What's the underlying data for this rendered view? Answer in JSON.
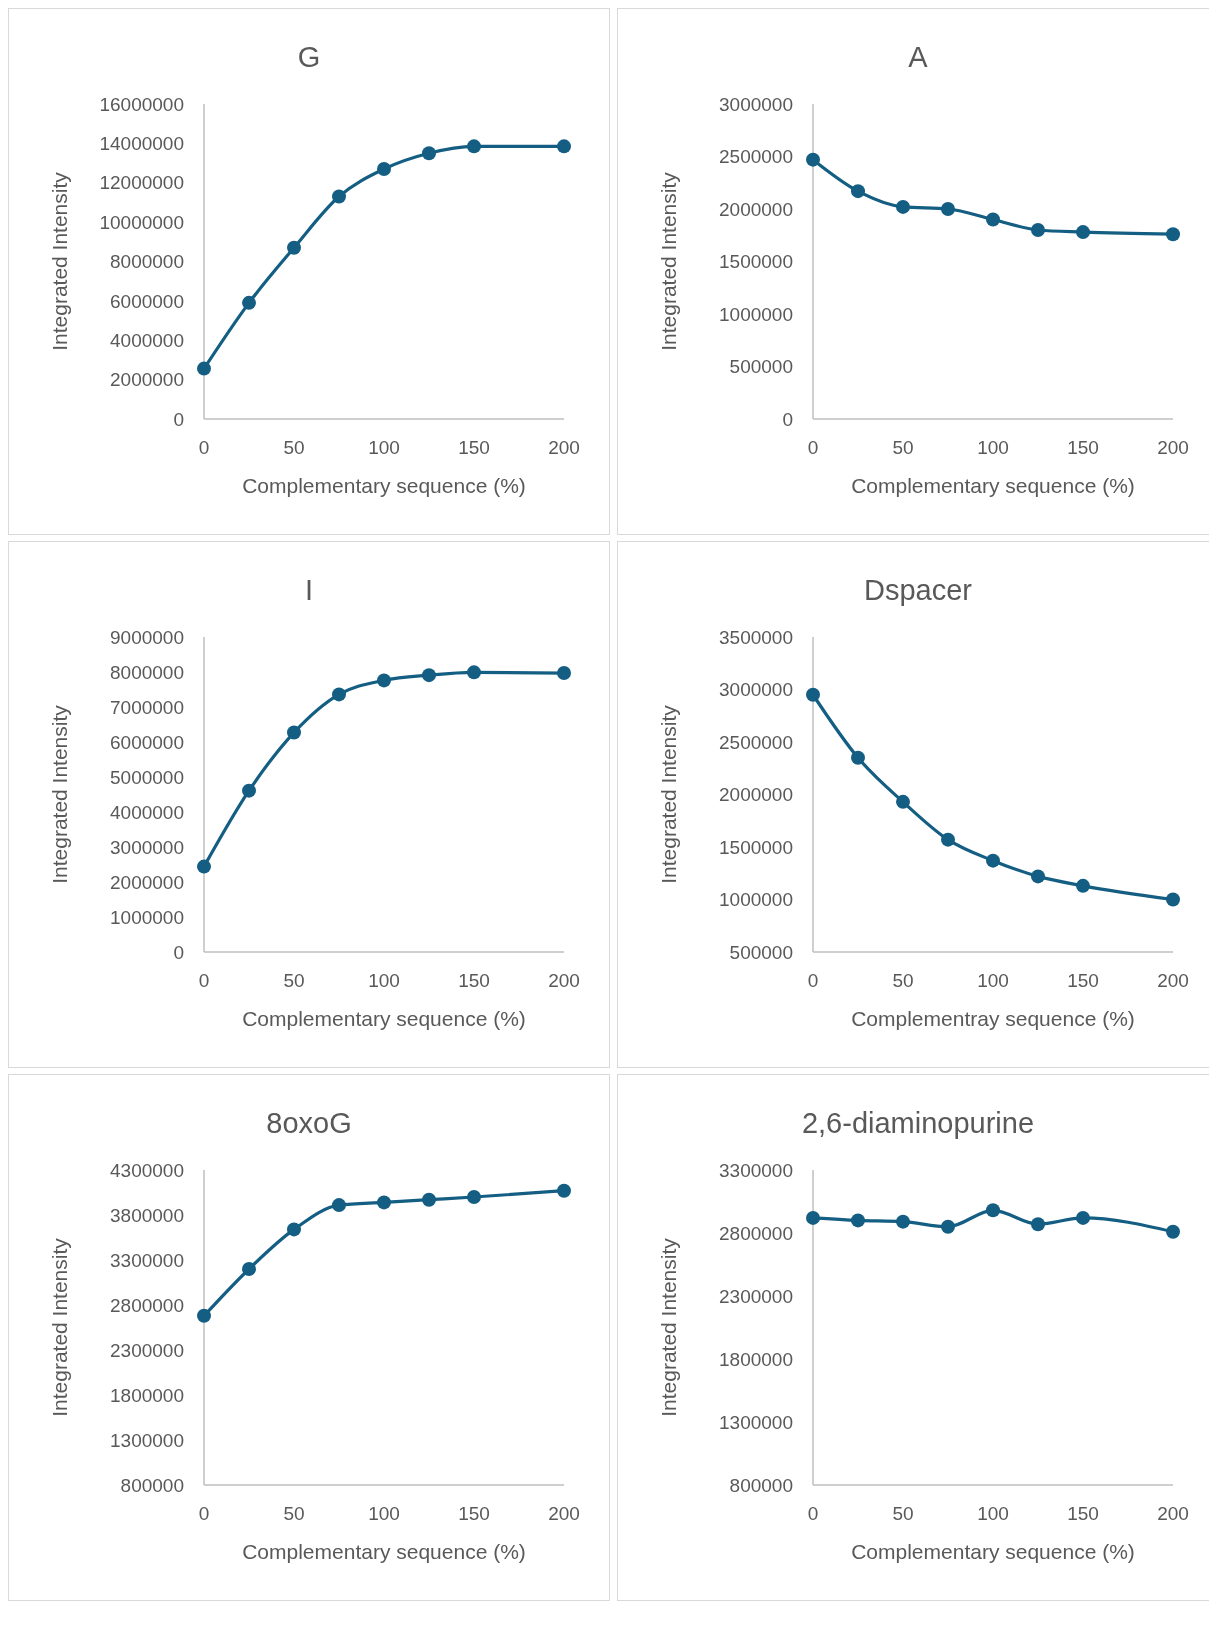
{
  "chart_data": [
    {
      "type": "line",
      "title": "G",
      "xlabel": "Complementary sequence (%)",
      "ylabel": "Integrated Intensity",
      "x": [
        0,
        25,
        50,
        75,
        100,
        125,
        150,
        200
      ],
      "marker": "circle",
      "xlim": [
        0,
        200
      ],
      "xticks": [
        0,
        50,
        100,
        150,
        200
      ],
      "ylim": [
        0,
        16000000
      ],
      "yticks": [
        0,
        2000000,
        4000000,
        6000000,
        8000000,
        10000000,
        12000000,
        14000000,
        16000000
      ],
      "series": [
        {
          "color": "#135e82",
          "values": [
            2560000,
            5900000,
            8700000,
            11300000,
            12700000,
            13500000,
            13850000,
            13850000
          ]
        }
      ]
    },
    {
      "type": "line",
      "title": "A",
      "xlabel": "Complementary sequence (%)",
      "ylabel": "Integrated Intensity",
      "x": [
        0,
        25,
        50,
        75,
        100,
        125,
        150,
        200
      ],
      "marker": "circle",
      "xlim": [
        0,
        200
      ],
      "xticks": [
        0,
        50,
        100,
        150,
        200
      ],
      "ylim": [
        0,
        3000000
      ],
      "yticks": [
        0,
        500000,
        1000000,
        1500000,
        2000000,
        2500000,
        3000000
      ],
      "series": [
        {
          "color": "#135e82",
          "values": [
            2470000,
            2170000,
            2020000,
            2000000,
            1900000,
            1800000,
            1780000,
            1760000
          ]
        }
      ]
    },
    {
      "type": "line",
      "title": "I",
      "xlabel": "Complementary sequence (%)",
      "ylabel": "Integrated Intensity",
      "x": [
        0,
        25,
        50,
        75,
        100,
        125,
        150,
        200
      ],
      "marker": "circle",
      "xlim": [
        0,
        200
      ],
      "xticks": [
        0,
        50,
        100,
        150,
        200
      ],
      "ylim": [
        0,
        9000000
      ],
      "yticks": [
        0,
        1000000,
        2000000,
        3000000,
        4000000,
        5000000,
        6000000,
        7000000,
        8000000,
        9000000
      ],
      "series": [
        {
          "color": "#135e82",
          "values": [
            2440000,
            4610000,
            6270000,
            7360000,
            7760000,
            7910000,
            7990000,
            7970000
          ]
        }
      ]
    },
    {
      "type": "line",
      "title": "Dspacer",
      "xlabel": "Complementray sequence (%)",
      "ylabel": "Integrated Intensity",
      "x": [
        0,
        25,
        50,
        75,
        100,
        125,
        150,
        200
      ],
      "marker": "circle",
      "xlim": [
        0,
        200
      ],
      "xticks": [
        0,
        50,
        100,
        150,
        200
      ],
      "ylim": [
        500000,
        3500000
      ],
      "yticks": [
        500000,
        1000000,
        1500000,
        2000000,
        2500000,
        3000000,
        3500000
      ],
      "series": [
        {
          "color": "#135e82",
          "values": [
            2950000,
            2350000,
            1930000,
            1570000,
            1370000,
            1220000,
            1130000,
            1000000
          ]
        }
      ]
    },
    {
      "type": "line",
      "title": "8oxoG",
      "xlabel": "Complementary sequence (%)",
      "ylabel": "Integrated Intensity",
      "x": [
        0,
        25,
        50,
        75,
        100,
        125,
        150,
        200
      ],
      "marker": "circle",
      "xlim": [
        0,
        200
      ],
      "xticks": [
        0,
        50,
        100,
        150,
        200
      ],
      "ylim": [
        800000,
        4300000
      ],
      "yticks": [
        800000,
        1300000,
        1800000,
        2300000,
        2800000,
        3300000,
        3800000,
        4300000
      ],
      "series": [
        {
          "color": "#135e82",
          "values": [
            2680000,
            3200000,
            3640000,
            3910000,
            3940000,
            3970000,
            4000000,
            4070000
          ]
        }
      ]
    },
    {
      "type": "line",
      "title": "2,6-diaminopurine",
      "xlabel": "Complementary sequence (%)",
      "ylabel": "Integrated Intensity",
      "x": [
        0,
        25,
        50,
        75,
        100,
        125,
        150,
        200
      ],
      "marker": "circle",
      "xlim": [
        0,
        200
      ],
      "xticks": [
        0,
        50,
        100,
        150,
        200
      ],
      "ylim": [
        800000,
        3300000
      ],
      "yticks": [
        800000,
        1300000,
        1800000,
        2300000,
        2800000,
        3300000
      ],
      "series": [
        {
          "color": "#135e82",
          "values": [
            2920000,
            2900000,
            2890000,
            2850000,
            2980000,
            2870000,
            2920000,
            2810000
          ]
        }
      ]
    }
  ]
}
